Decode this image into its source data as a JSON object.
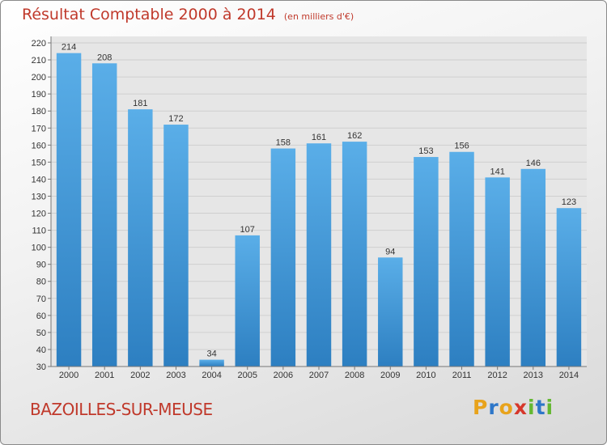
{
  "title": "Résultat Comptable 2000 à 2014",
  "subtitle": "(en milliers d'€)",
  "place": "BAZOILLES-SUR-MEUSE",
  "brand": {
    "letters": [
      "P",
      "r",
      "o",
      "x",
      "i",
      "t",
      "i"
    ],
    "colors": [
      "#e8a31c",
      "#2e77c9",
      "#e8a31c",
      "#d6372b",
      "#64b832",
      "#2e77c9",
      "#64b832"
    ]
  },
  "colors": {
    "title": "#c0392b",
    "bar_light": "#5aaee8",
    "bar_dark": "#2d7fc1",
    "grid": "#cfcfcf"
  },
  "chart_data": {
    "type": "bar",
    "title": "Résultat Comptable 2000 à 2014",
    "subtitle": "(en milliers d'€)",
    "categories": [
      "2000",
      "2001",
      "2002",
      "2003",
      "2004",
      "2005",
      "2006",
      "2007",
      "2008",
      "2009",
      "2010",
      "2011",
      "2012",
      "2013",
      "2014"
    ],
    "values": [
      214,
      208,
      181,
      172,
      34,
      107,
      158,
      161,
      162,
      94,
      153,
      156,
      141,
      146,
      123
    ],
    "ylim": [
      30,
      220
    ],
    "ytick_step": 10,
    "grid": true,
    "data_labels": true
  }
}
